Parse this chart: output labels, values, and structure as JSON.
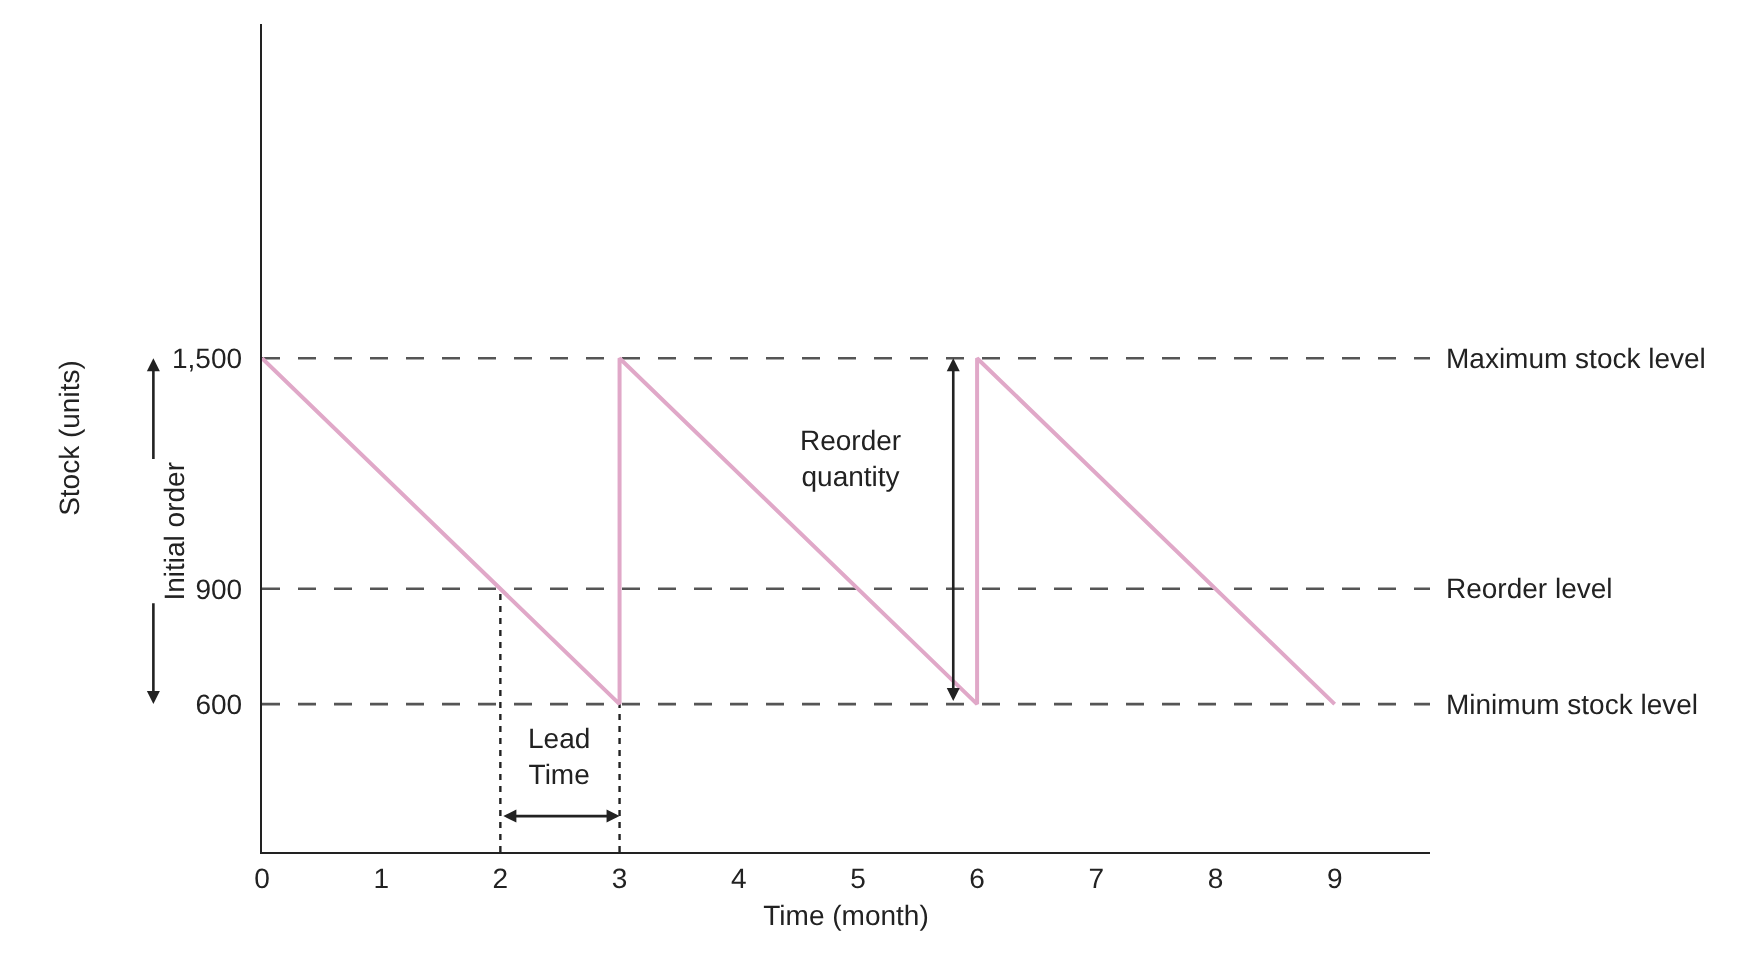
{
  "chart_data": {
    "type": "line",
    "xlabel": "Time (month)",
    "ylabel": "Stock (units)",
    "x": [
      0,
      3,
      3,
      6,
      6,
      9
    ],
    "series": [
      {
        "color": "#e0a8c8",
        "values": [
          1500,
          600,
          1500,
          600,
          1500,
          600
        ]
      }
    ],
    "xlim": [
      0,
      9.8
    ],
    "xticks": [
      0,
      1,
      2,
      3,
      4,
      5,
      6,
      7,
      8,
      9
    ],
    "ylim": [
      215,
      2370
    ],
    "yticks": [
      600,
      900,
      {
        "value": 1500,
        "label": "1,500"
      }
    ],
    "grid": false,
    "marker": "none",
    "line_style": "solid",
    "ref_lines": [
      {
        "axis": "y",
        "value": 1500,
        "label": "Maximum stock level",
        "color": "#555555",
        "line_style": "dashed"
      },
      {
        "axis": "y",
        "value": 900,
        "label": "Reorder level",
        "color": "#555555",
        "line_style": "dashed"
      },
      {
        "axis": "y",
        "value": 600,
        "label": "Minimum stock level",
        "color": "#555555",
        "line_style": "dashed"
      },
      {
        "axis": "x",
        "value": 2,
        "label": null,
        "color": "#222222",
        "line_style": "dotted"
      },
      {
        "axis": "x",
        "value": 3,
        "label": null,
        "color": "#222222",
        "line_style": "dotted"
      }
    ],
    "annotations": [
      "Lead Time",
      "Reorder quantity",
      "Initial order"
    ]
  }
}
